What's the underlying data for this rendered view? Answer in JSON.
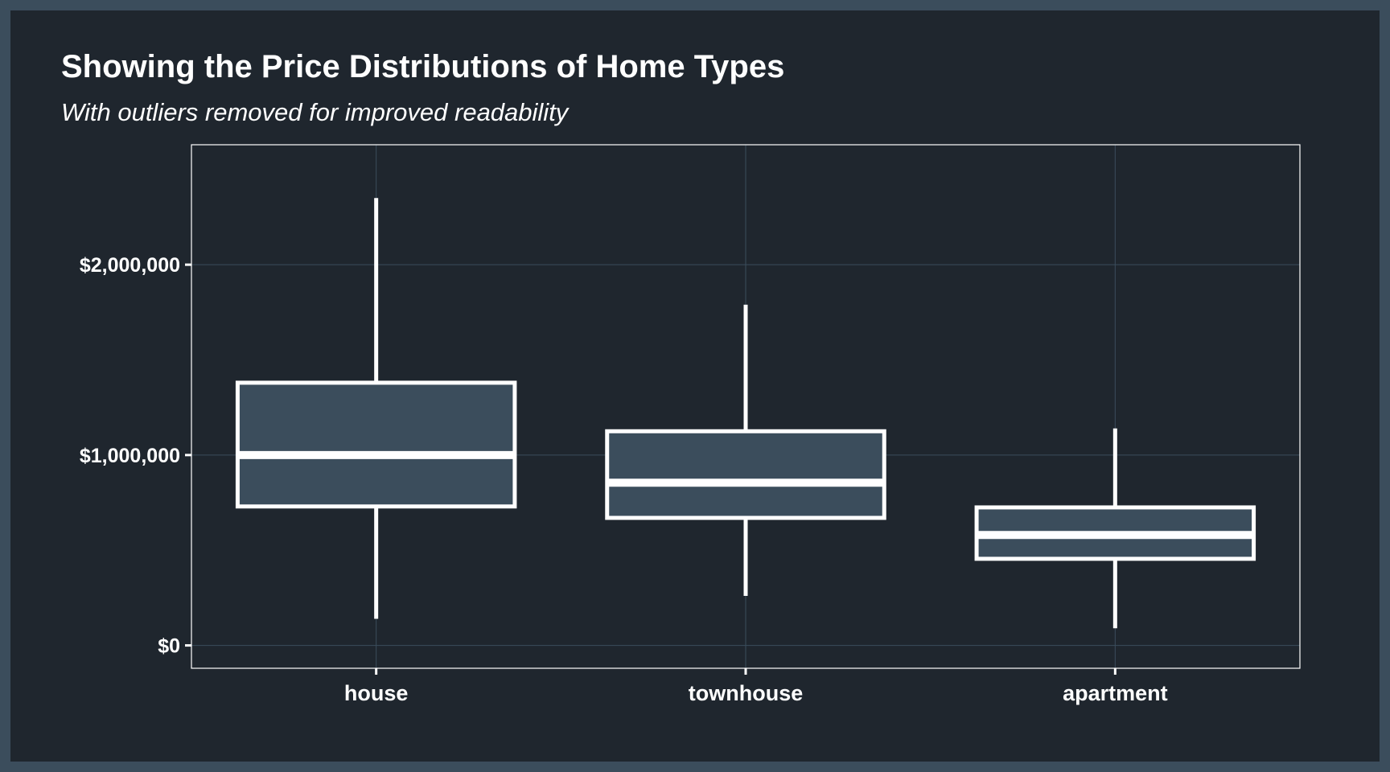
{
  "chart_data": {
    "type": "boxplot",
    "title": "Showing the Price Distributions of Home Types",
    "subtitle": "With outliers removed for improved readability",
    "xlabel": "",
    "ylabel": "",
    "categories": [
      "house",
      "townhouse",
      "apartment"
    ],
    "boxes": [
      {
        "category": "house",
        "min": 140000,
        "q1": 730000,
        "median": 1000000,
        "q3": 1380000,
        "max": 2350000
      },
      {
        "category": "townhouse",
        "min": 260000,
        "q1": 670000,
        "median": 855000,
        "q3": 1125000,
        "max": 1790000
      },
      {
        "category": "apartment",
        "min": 90000,
        "q1": 455000,
        "median": 580000,
        "q3": 725000,
        "max": 1140000
      }
    ],
    "yticks": [
      0,
      1000000,
      2000000
    ],
    "ytick_labels": [
      "$0",
      "$1,000,000",
      "$2,000,000"
    ],
    "ylim": [
      -120000,
      2630000
    ],
    "grid": true,
    "legend": "none",
    "colors": {
      "background": "#1f262e",
      "outer_background": "#3b4d5c",
      "box_fill": "#3b4d5c",
      "box_stroke": "#ffffff",
      "grid": "#3b4d5c",
      "text": "#ffffff"
    }
  }
}
